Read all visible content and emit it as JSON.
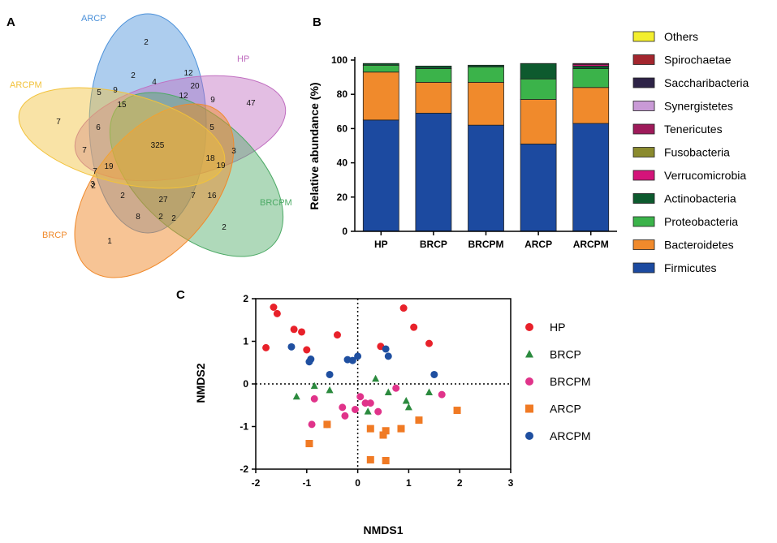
{
  "panels": {
    "a": "A",
    "b": "B",
    "c": "C"
  },
  "venn": {
    "sets": [
      {
        "name": "ARCP",
        "color": "#4a90d9"
      },
      {
        "name": "HP",
        "color": "#c06ec0"
      },
      {
        "name": "BRCPM",
        "color": "#4daa66"
      },
      {
        "name": "BRCP",
        "color": "#f08a2c"
      },
      {
        "name": "ARCPM",
        "color": "#f2c23a"
      }
    ],
    "counts": [
      "2",
      "2",
      "4",
      "12",
      "5",
      "9",
      "20",
      "12",
      "9",
      "47",
      "15",
      "7",
      "7",
      "6",
      "325",
      "5",
      "18",
      "3",
      "7",
      "19",
      "3",
      "19",
      "2",
      "2",
      "27",
      "7",
      "16",
      "8",
      "2",
      "2",
      "1",
      "2"
    ]
  },
  "chart_data": [
    {
      "type": "bar",
      "stacked": true,
      "categories": [
        "HP",
        "BRCP",
        "BRCPM",
        "ARCP",
        "ARCPM"
      ],
      "ylabel": "Relative abundance (%)",
      "xlabel": "",
      "ylim": [
        0,
        100
      ],
      "yticks": [
        "0",
        "20",
        "40",
        "60",
        "80",
        "100"
      ],
      "series": [
        {
          "name": "Firmicutes",
          "color": "#1c4aa0",
          "values": [
            65,
            69,
            62,
            51,
            63
          ]
        },
        {
          "name": "Bacteroidetes",
          "color": "#f08a2c",
          "values": [
            28,
            18,
            25,
            26,
            21
          ]
        },
        {
          "name": "Proteobacteria",
          "color": "#3bb34a",
          "values": [
            4,
            8,
            9,
            12,
            11
          ]
        },
        {
          "name": "Actinobacteria",
          "color": "#0d5a2e",
          "values": [
            1,
            1.5,
            1,
            9,
            1.5
          ]
        },
        {
          "name": "Verrucomicrobia",
          "color": "#d4147a",
          "values": [
            0,
            0,
            0,
            0,
            1
          ]
        },
        {
          "name": "Fusobacteria",
          "color": "#8a8a2e",
          "values": [
            0,
            0,
            0,
            0,
            0
          ]
        },
        {
          "name": "Tenericutes",
          "color": "#9e1a5a",
          "values": [
            0,
            0,
            0,
            0,
            0.5
          ]
        },
        {
          "name": "Synergistetes",
          "color": "#c99ad6",
          "values": [
            0,
            0,
            0,
            0,
            0
          ]
        },
        {
          "name": "Saccharibacteria",
          "color": "#2e2347",
          "values": [
            0,
            0,
            0,
            0,
            0
          ]
        },
        {
          "name": "Spirochaetae",
          "color": "#a3262e",
          "values": [
            0,
            0,
            0,
            0,
            0
          ]
        },
        {
          "name": "Others",
          "color": "#f3ee2e",
          "values": [
            0,
            0,
            0,
            0,
            0
          ]
        }
      ]
    },
    {
      "type": "scatter",
      "xlabel": "NMDS1",
      "ylabel": "NMDS2",
      "xlim": [
        -2,
        3
      ],
      "ylim": [
        -2,
        2
      ],
      "xticks": [
        "-2",
        "-1",
        "0",
        "1",
        "2",
        "3"
      ],
      "yticks": [
        "-2",
        "-1",
        "0",
        "1",
        "2"
      ],
      "series": [
        {
          "name": "HP",
          "color": "#e8212a",
          "marker": "circle",
          "points": [
            [
              -1.65,
              1.8
            ],
            [
              -1.58,
              1.65
            ],
            [
              -1.8,
              0.85
            ],
            [
              -1.25,
              1.28
            ],
            [
              -1.1,
              1.22
            ],
            [
              -1.0,
              0.8
            ],
            [
              -0.4,
              1.15
            ],
            [
              0.45,
              0.88
            ],
            [
              0.9,
              1.78
            ],
            [
              1.1,
              1.33
            ],
            [
              1.4,
              0.95
            ]
          ]
        },
        {
          "name": "BRCP",
          "color": "#2b8a3e",
          "marker": "triangle",
          "points": [
            [
              -1.2,
              -0.3
            ],
            [
              -0.85,
              -0.05
            ],
            [
              -0.55,
              -0.15
            ],
            [
              0.2,
              -0.65
            ],
            [
              0.35,
              0.12
            ],
            [
              0.6,
              -0.2
            ],
            [
              0.95,
              -0.4
            ],
            [
              1.0,
              -0.55
            ],
            [
              1.4,
              -0.2
            ]
          ]
        },
        {
          "name": "BRCPM",
          "color": "#e0338a",
          "marker": "circle",
          "points": [
            [
              -0.9,
              -0.95
            ],
            [
              -0.6,
              -0.95
            ],
            [
              -0.85,
              -0.35
            ],
            [
              -0.3,
              -0.55
            ],
            [
              -0.25,
              -0.75
            ],
            [
              -0.05,
              -0.6
            ],
            [
              0.05,
              -0.3
            ],
            [
              0.15,
              -0.45
            ],
            [
              0.25,
              -0.45
            ],
            [
              0.4,
              -0.65
            ],
            [
              0.75,
              -0.1
            ],
            [
              1.65,
              -0.25
            ]
          ]
        },
        {
          "name": "ARCP",
          "color": "#f07a24",
          "marker": "square",
          "points": [
            [
              -0.95,
              -1.4
            ],
            [
              -0.6,
              -0.95
            ],
            [
              0.25,
              -1.05
            ],
            [
              0.5,
              -1.2
            ],
            [
              0.55,
              -1.1
            ],
            [
              0.85,
              -1.05
            ],
            [
              1.2,
              -0.85
            ],
            [
              1.95,
              -0.62
            ],
            [
              0.25,
              -1.78
            ],
            [
              0.55,
              -1.8
            ]
          ]
        },
        {
          "name": "ARCPM",
          "color": "#1f4fa0",
          "marker": "circle",
          "points": [
            [
              -1.3,
              0.87
            ],
            [
              -0.95,
              0.52
            ],
            [
              -0.92,
              0.58
            ],
            [
              -0.55,
              0.22
            ],
            [
              -0.2,
              0.57
            ],
            [
              -0.1,
              0.55
            ],
            [
              0.0,
              0.65
            ],
            [
              0.55,
              0.82
            ],
            [
              0.6,
              0.65
            ],
            [
              1.5,
              0.22
            ]
          ]
        }
      ]
    }
  ]
}
